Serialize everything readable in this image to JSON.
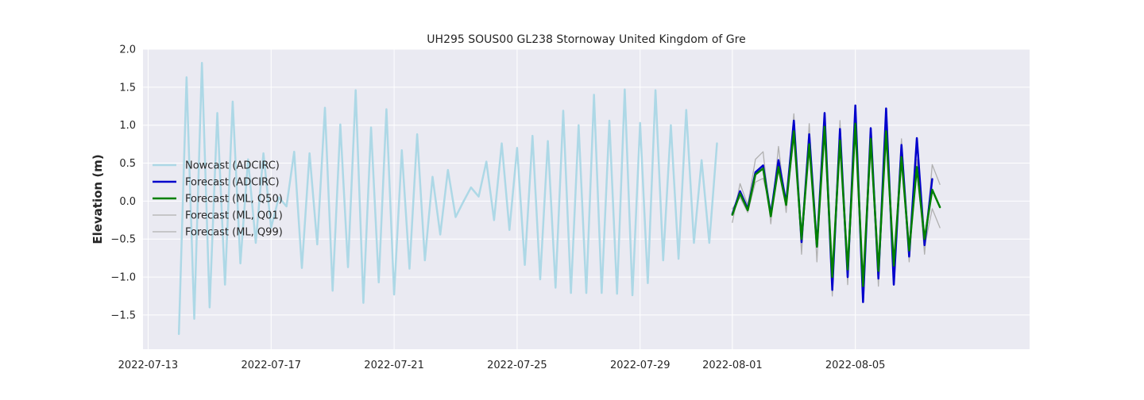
{
  "chart_data": {
    "type": "line",
    "title": "UH295 SOUS00 GL238 Stornoway United Kingdom of Gre",
    "xlabel": "",
    "ylabel": "Elevation (m)",
    "xlim": [
      "2022-07-12T20:00",
      "2022-08-10T16:00"
    ],
    "ylim": [
      -1.95,
      2.0
    ],
    "yticks": [
      -1.5,
      -1.0,
      -0.5,
      0.0,
      0.5,
      1.0,
      1.5,
      2.0
    ],
    "ytick_labels": [
      "−1.5",
      "−1.0",
      "−0.5",
      "0.0",
      "0.5",
      "1.0",
      "1.5",
      "2.0"
    ],
    "xticks": [
      "2022-07-13",
      "2022-07-17",
      "2022-07-21",
      "2022-07-25",
      "2022-07-29",
      "2022-08-01",
      "2022-08-05"
    ],
    "grid": true,
    "legend_position": "center-left",
    "series": [
      {
        "name": "Nowcast (ADCIRC)",
        "color": "#add8e6",
        "width": 2.5,
        "x": [
          "2022-07-14T00:00",
          "2022-07-14T06:00",
          "2022-07-14T12:00",
          "2022-07-14T18:00",
          "2022-07-15T00:00",
          "2022-07-15T06:00",
          "2022-07-15T12:00",
          "2022-07-15T18:00",
          "2022-07-16T00:00",
          "2022-07-16T06:00",
          "2022-07-16T12:00",
          "2022-07-16T18:00",
          "2022-07-17T00:00",
          "2022-07-17T06:00",
          "2022-07-17T12:00",
          "2022-07-17T18:00",
          "2022-07-18T00:00",
          "2022-07-18T06:00",
          "2022-07-18T12:00",
          "2022-07-18T18:00",
          "2022-07-19T00:00",
          "2022-07-19T06:00",
          "2022-07-19T12:00",
          "2022-07-19T18:00",
          "2022-07-20T00:00",
          "2022-07-20T06:00",
          "2022-07-20T12:00",
          "2022-07-20T18:00",
          "2022-07-21T00:00",
          "2022-07-21T06:00",
          "2022-07-21T12:00",
          "2022-07-21T18:00",
          "2022-07-22T00:00",
          "2022-07-22T06:00",
          "2022-07-22T12:00",
          "2022-07-22T18:00",
          "2022-07-23T00:00",
          "2022-07-23T06:00",
          "2022-07-23T12:00",
          "2022-07-23T18:00",
          "2022-07-24T00:00",
          "2022-07-24T06:00",
          "2022-07-24T12:00",
          "2022-07-24T18:00",
          "2022-07-25T00:00",
          "2022-07-25T06:00",
          "2022-07-25T12:00",
          "2022-07-25T18:00",
          "2022-07-26T00:00",
          "2022-07-26T06:00",
          "2022-07-26T12:00",
          "2022-07-26T18:00",
          "2022-07-27T00:00",
          "2022-07-27T06:00",
          "2022-07-27T12:00",
          "2022-07-27T18:00",
          "2022-07-28T00:00",
          "2022-07-28T06:00",
          "2022-07-28T12:00",
          "2022-07-28T18:00",
          "2022-07-29T00:00",
          "2022-07-29T06:00",
          "2022-07-29T12:00",
          "2022-07-29T18:00",
          "2022-07-30T00:00",
          "2022-07-30T06:00",
          "2022-07-30T12:00",
          "2022-07-30T18:00",
          "2022-07-31T00:00",
          "2022-07-31T06:00",
          "2022-07-31T12:00",
          "2022-07-31T18:00"
        ],
        "y": [
          -1.75,
          1.63,
          -1.55,
          1.82,
          -1.4,
          1.16,
          -1.1,
          1.31,
          -0.82,
          0.55,
          -0.55,
          0.63,
          -0.35,
          0.05,
          -0.07,
          0.65,
          -0.88,
          0.63,
          -0.57,
          1.23,
          -1.18,
          1.01,
          -0.87,
          1.46,
          -1.34,
          0.97,
          -1.07,
          1.21,
          -1.23,
          0.67,
          -0.89,
          0.88,
          -0.78,
          0.32,
          -0.44,
          0.41,
          -0.21,
          -0.01,
          0.18,
          0.06,
          0.52,
          -0.25,
          0.76,
          -0.38,
          0.7,
          -0.84,
          0.86,
          -1.03,
          0.79,
          -1.14,
          1.19,
          -1.21,
          1.0,
          -1.21,
          1.4,
          -1.21,
          1.06,
          -1.22,
          1.47,
          -1.24,
          1.03,
          -1.08,
          1.46,
          -0.78,
          1.0,
          -0.76,
          1.2,
          -0.55,
          0.54,
          -0.55,
          0.76,
          null
        ]
      },
      {
        "name": "Forecast (ML, Q01)",
        "color": "#b0b0b0",
        "width": 1.3,
        "x": [
          "2022-08-01T00:00",
          "2022-08-01T06:00",
          "2022-08-01T12:00",
          "2022-08-01T18:00",
          "2022-08-02T00:00",
          "2022-08-02T06:00",
          "2022-08-02T12:00",
          "2022-08-02T18:00",
          "2022-08-03T00:00",
          "2022-08-03T06:00",
          "2022-08-03T12:00",
          "2022-08-03T18:00",
          "2022-08-04T00:00",
          "2022-08-04T06:00",
          "2022-08-04T12:00",
          "2022-08-04T18:00",
          "2022-08-05T00:00",
          "2022-08-05T06:00",
          "2022-08-05T12:00",
          "2022-08-05T18:00",
          "2022-08-06T00:00",
          "2022-08-06T06:00",
          "2022-08-06T12:00",
          "2022-08-06T18:00",
          "2022-08-07T00:00",
          "2022-08-07T06:00",
          "2022-08-07T12:00",
          "2022-08-07T18:00"
        ],
        "y": [
          -0.28,
          0.23,
          -0.05,
          0.55,
          0.65,
          -0.3,
          0.72,
          -0.15,
          1.15,
          -0.7,
          1.02,
          -0.8,
          1.1,
          -1.25,
          1.06,
          -1.1,
          1.12,
          -1.3,
          0.92,
          -1.12,
          1.0,
          -0.9,
          0.82,
          -0.8,
          0.55,
          -0.7,
          0.48,
          0.22
        ]
      },
      {
        "name": "Forecast (ML, Q99)",
        "color": "#b0b0b0",
        "width": 1.3,
        "x": [
          "2022-08-01T00:00",
          "2022-08-01T06:00",
          "2022-08-01T12:00",
          "2022-08-01T18:00",
          "2022-08-02T00:00",
          "2022-08-02T06:00",
          "2022-08-02T12:00",
          "2022-08-02T18:00",
          "2022-08-03T00:00",
          "2022-08-03T06:00",
          "2022-08-03T12:00",
          "2022-08-03T18:00",
          "2022-08-04T00:00",
          "2022-08-04T06:00",
          "2022-08-04T12:00",
          "2022-08-04T18:00",
          "2022-08-05T00:00",
          "2022-08-05T06:00",
          "2022-08-05T12:00",
          "2022-08-05T18:00",
          "2022-08-06T00:00",
          "2022-08-06T06:00",
          "2022-08-06T12:00",
          "2022-08-06T18:00",
          "2022-08-07T00:00",
          "2022-08-07T06:00",
          "2022-08-07T12:00",
          "2022-08-07T18:00"
        ],
        "y": [
          -0.1,
          0.05,
          -0.15,
          0.25,
          0.3,
          -0.1,
          0.4,
          -0.08,
          0.85,
          -0.45,
          0.7,
          -0.55,
          0.9,
          -1.0,
          0.75,
          -0.95,
          0.98,
          -1.1,
          0.68,
          -0.9,
          0.85,
          -0.78,
          0.48,
          -0.58,
          0.4,
          -0.6,
          -0.1,
          -0.35
        ]
      },
      {
        "name": "Forecast (ADCIRC)",
        "color": "#0000cc",
        "width": 2.5,
        "x": [
          "2022-08-01T00:00",
          "2022-08-01T06:00",
          "2022-08-01T12:00",
          "2022-08-01T18:00",
          "2022-08-02T00:00",
          "2022-08-02T06:00",
          "2022-08-02T12:00",
          "2022-08-02T18:00",
          "2022-08-03T00:00",
          "2022-08-03T06:00",
          "2022-08-03T12:00",
          "2022-08-03T18:00",
          "2022-08-04T00:00",
          "2022-08-04T06:00",
          "2022-08-04T12:00",
          "2022-08-04T18:00",
          "2022-08-05T00:00",
          "2022-08-05T06:00",
          "2022-08-05T12:00",
          "2022-08-05T18:00",
          "2022-08-06T00:00",
          "2022-08-06T06:00",
          "2022-08-06T12:00",
          "2022-08-06T18:00",
          "2022-08-07T00:00",
          "2022-08-07T06:00",
          "2022-08-07T12:00"
        ],
        "y": [
          -0.17,
          0.13,
          -0.1,
          0.38,
          0.47,
          -0.18,
          0.54,
          -0.02,
          1.06,
          -0.54,
          0.88,
          -0.6,
          1.16,
          -1.17,
          0.95,
          -1.0,
          1.26,
          -1.33,
          0.96,
          -1.02,
          1.22,
          -1.1,
          0.74,
          -0.73,
          0.83,
          -0.58,
          0.29
        ]
      },
      {
        "name": "Forecast (ML, Q50)",
        "color": "#008000",
        "width": 2.5,
        "x": [
          "2022-08-01T00:00",
          "2022-08-01T06:00",
          "2022-08-01T12:00",
          "2022-08-01T18:00",
          "2022-08-02T00:00",
          "2022-08-02T06:00",
          "2022-08-02T12:00",
          "2022-08-02T18:00",
          "2022-08-03T00:00",
          "2022-08-03T06:00",
          "2022-08-03T12:00",
          "2022-08-03T18:00",
          "2022-08-04T00:00",
          "2022-08-04T06:00",
          "2022-08-04T12:00",
          "2022-08-04T18:00",
          "2022-08-05T00:00",
          "2022-08-05T06:00",
          "2022-08-05T12:00",
          "2022-08-05T18:00",
          "2022-08-06T00:00",
          "2022-08-06T06:00",
          "2022-08-06T12:00",
          "2022-08-06T18:00",
          "2022-08-07T00:00",
          "2022-08-07T06:00",
          "2022-08-07T12:00",
          "2022-08-07T18:00"
        ],
        "y": [
          -0.18,
          0.1,
          -0.12,
          0.35,
          0.43,
          -0.2,
          0.45,
          -0.05,
          0.92,
          -0.5,
          0.75,
          -0.6,
          0.98,
          -1.0,
          0.8,
          -0.9,
          1.02,
          -1.12,
          0.82,
          -0.92,
          0.92,
          -0.85,
          0.58,
          -0.65,
          0.45,
          -0.5,
          0.15,
          -0.08
        ]
      }
    ],
    "legend": [
      {
        "name": "Nowcast (ADCIRC)",
        "color": "#add8e6",
        "width": 2.5
      },
      {
        "name": "Forecast (ADCIRC)",
        "color": "#0000cc",
        "width": 2.5
      },
      {
        "name": "Forecast (ML, Q50)",
        "color": "#008000",
        "width": 2.5
      },
      {
        "name": "Forecast (ML, Q01)",
        "color": "#b0b0b0",
        "width": 1.3
      },
      {
        "name": "Forecast (ML, Q99)",
        "color": "#b0b0b0",
        "width": 1.3
      }
    ],
    "colors": {
      "plot_background": "#eaeaf2",
      "grid": "#ffffff",
      "text": "#262626"
    }
  }
}
